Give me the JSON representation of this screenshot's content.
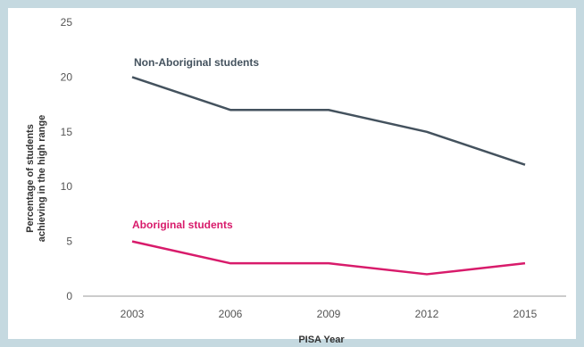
{
  "chart_data": {
    "type": "line",
    "title": "",
    "xlabel": "PISA Year",
    "ylabel": [
      "Percentage of students",
      "achieving in the high range"
    ],
    "x": [
      "2003",
      "2006",
      "2009",
      "2012",
      "2015"
    ],
    "ylim": [
      0,
      25
    ],
    "yticks": [
      "0",
      "5",
      "10",
      "15",
      "20",
      "25"
    ],
    "grid": false,
    "series": [
      {
        "name": "Non-Aboriginal students",
        "values": [
          20,
          17,
          17,
          15,
          12
        ],
        "color": "#44525e"
      },
      {
        "name": "Aboriginal students",
        "values": [
          5,
          3,
          3,
          2,
          3
        ],
        "color": "#d81b6b"
      }
    ],
    "colors": {
      "axis": "#999999",
      "background": "#c5d9e0"
    }
  }
}
